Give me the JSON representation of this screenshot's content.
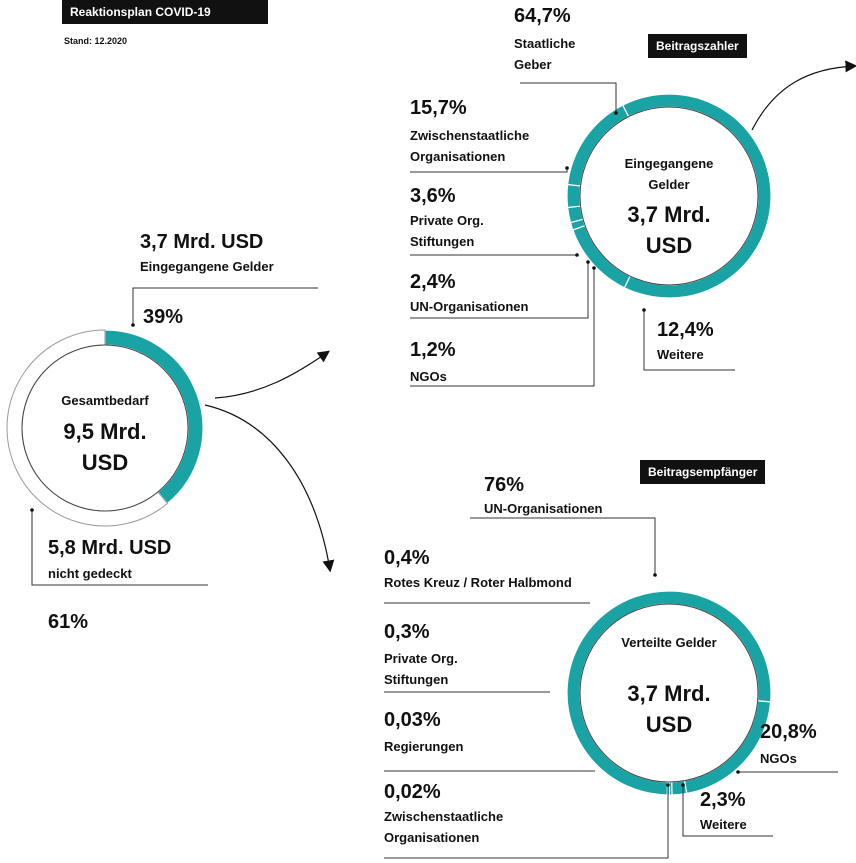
{
  "header": {
    "title": "Reaktionsplan COVID-19",
    "subtitle": "Stand: 12.2020"
  },
  "chart_data": [
    {
      "type": "donut",
      "center_label": "Gesamtbedarf",
      "center_value": "9,5 Mrd. USD",
      "categories": [
        "Eingegangene Gelder",
        "nicht gedeckt"
      ],
      "amount_labels": [
        "3,7 Mrd. USD",
        "5,8 Mrd. USD"
      ],
      "values": [
        39,
        61
      ],
      "value_labels": [
        "39%",
        "61%"
      ],
      "colors": [
        "#19a3a5",
        "#ffffff"
      ]
    },
    {
      "type": "donut",
      "tag": "Beitragszahler",
      "center_label": "Eingegangene Gelder",
      "center_value": "3,7 Mrd. USD",
      "categories": [
        "Staatliche Geber",
        "Weitere",
        "NGOs",
        "UN-Organisationen",
        "Private Org. Stiftungen",
        "Zwischenstaatliche Organisationen"
      ],
      "values": [
        64.7,
        12.4,
        1.2,
        2.4,
        3.6,
        15.7
      ],
      "value_labels": [
        "64,7%",
        "12,4%",
        "1,2%",
        "2,4%",
        "3,6%",
        "15,7%"
      ],
      "color": "#19a3a5"
    },
    {
      "type": "donut",
      "tag": "Beitragsempfänger",
      "center_label": "Verteilte Gelder",
      "center_value": "3,7 Mrd. USD",
      "categories": [
        "NGOs",
        "Weitere",
        "Rotes Kreuz / Roter Halbmond",
        "Private Org. Stiftungen",
        "Regierungen",
        "Zwischenstaatliche Organisationen",
        "UN-Organisationen"
      ],
      "values": [
        20.8,
        2.3,
        0.4,
        0.3,
        0.03,
        0.02,
        76
      ],
      "value_labels": [
        "20,8%",
        "2,3%",
        "0,4%",
        "0,3%",
        "0,03%",
        "0,02%",
        "76%"
      ],
      "color": "#19a3a5"
    }
  ]
}
